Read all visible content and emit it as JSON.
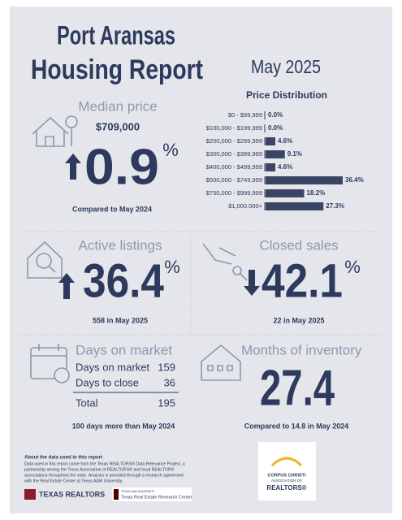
{
  "header": {
    "title_lines": [
      "Port Aransas",
      "Housing Report"
    ],
    "date": "May 2025"
  },
  "chart_data": {
    "type": "bar",
    "orientation": "horizontal",
    "title": "Price Distribution",
    "categories": [
      "$0 - $99,999",
      "$100,000 - $199,999",
      "$200,000 - $299,999",
      "$300,000 - $399,999",
      "$400,000 - $499,999",
      "$500,000 - $749,999",
      "$750,000 - $999,999",
      "$1,000,000+"
    ],
    "values": [
      0.0,
      0.0,
      4.6,
      9.1,
      4.6,
      36.4,
      18.2,
      27.3
    ],
    "value_labels": [
      "0.0%",
      "0.0%",
      "4.6%",
      "9.1%",
      "4.6%",
      "36.4%",
      "18.2%",
      "27.3%"
    ],
    "color": "#3a4566"
  },
  "median_price": {
    "title": "Median price",
    "value": "$709,000",
    "change": "0.9",
    "unit": "%",
    "direction": "up",
    "note": "Compared to May 2024"
  },
  "active_listings": {
    "title": "Active listings",
    "change": "36.4",
    "unit": "%",
    "direction": "up",
    "note": "558 in May 2025"
  },
  "closed_sales": {
    "title": "Closed sales",
    "change": "42.1",
    "unit": "%",
    "direction": "down",
    "note": "22 in May 2025"
  },
  "days_on_market": {
    "title": "Days on market",
    "rows": [
      [
        "Days on market",
        "159"
      ],
      [
        "Days to close",
        "36"
      ]
    ],
    "total": [
      "Total",
      "195"
    ],
    "note": "100 days more than May 2024"
  },
  "months_of_inventory": {
    "title": "Months of inventory",
    "value": "27.4",
    "note": "Compared to 14.8 in May 2024"
  },
  "footer": {
    "about_title": "About the data used in this report",
    "about_lines": [
      "Data used in this report come from the Texas REALTORS® Data Relevance Project, a",
      "partnership among the Texas Association of REALTORS® and local REALTOR®",
      "associations throughout the state. Analysis is provided through a research agreement",
      "with the Real Estate Center at Texas A&M University."
    ],
    "texas_realtors": "TEXAS REALTORS",
    "tamu": "TEXAS A&M UNIVERSITY",
    "research_center": "Texas Real Estate Research Center",
    "cc_logo": [
      "CORPUS CHRISTI",
      "ASSOCIATION OF",
      "REALTORS®"
    ]
  }
}
